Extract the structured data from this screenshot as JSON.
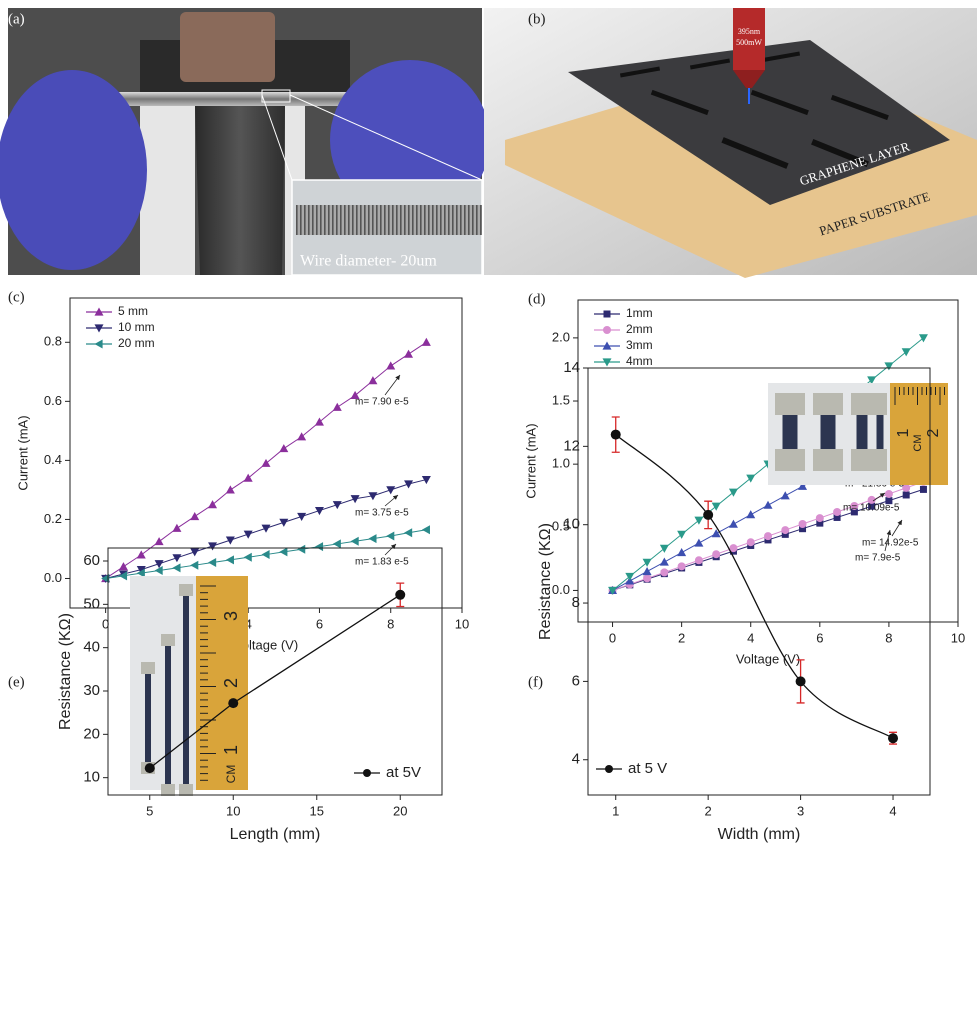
{
  "panels": [
    {
      "label": "(a)",
      "caption": "Wire diameter- 20um"
    },
    {
      "label": "(b)",
      "laser": [
        "395nm",
        "500mW"
      ],
      "layers": [
        "GRAPHENE LAYER",
        "PAPER SUBSTRATE"
      ]
    }
  ],
  "chart_data": [
    {
      "type": "scatter",
      "label": "(c)",
      "x_label": "Voltage (V)",
      "y_label": "Current (mA)",
      "x": [
        0,
        0.5,
        1,
        1.5,
        2,
        2.5,
        3,
        3.5,
        4,
        4.5,
        5,
        5.5,
        6,
        6.5,
        7,
        7.5,
        8,
        8.5,
        9
      ],
      "series": [
        {
          "name": "5 mm",
          "color": "#8b2f9c",
          "marker": "triangle-up",
          "values": [
            0,
            0.04,
            0.08,
            0.125,
            0.17,
            0.21,
            0.25,
            0.3,
            0.34,
            0.39,
            0.44,
            0.48,
            0.53,
            0.58,
            0.62,
            0.67,
            0.72,
            0.76,
            0.8
          ]
        },
        {
          "name": "10 mm",
          "color": "#2d2a70",
          "marker": "triangle-down",
          "values": [
            0,
            0.015,
            0.03,
            0.05,
            0.07,
            0.09,
            0.11,
            0.13,
            0.15,
            0.17,
            0.19,
            0.21,
            0.23,
            0.25,
            0.27,
            0.28,
            0.3,
            0.32,
            0.335
          ]
        },
        {
          "name": "20 mm",
          "color": "#2a8a8a",
          "marker": "triangle-left",
          "values": [
            0,
            0.009,
            0.018,
            0.027,
            0.036,
            0.045,
            0.054,
            0.063,
            0.072,
            0.081,
            0.09,
            0.099,
            0.108,
            0.117,
            0.126,
            0.135,
            0.144,
            0.155,
            0.165
          ]
        }
      ],
      "xlim": [
        -1,
        10
      ],
      "ylim": [
        -0.1,
        0.95
      ],
      "xticks": [
        0,
        2,
        4,
        6,
        8,
        10
      ],
      "yticks": [
        {
          "value": 0,
          "label": "0.0"
        },
        0.2,
        0.4,
        0.6,
        0.8
      ],
      "legend": "upper left",
      "annotations": [
        "m= 7.90 e-5",
        "m= 3.75 e-5",
        "m= 1.83 e-5"
      ]
    },
    {
      "type": "scatter",
      "label": "(d)",
      "x_label": "Voltage (V)",
      "y_label": "Current (mA)",
      "x": [
        0,
        0.5,
        1,
        1.5,
        2,
        2.5,
        3,
        3.5,
        4,
        4.5,
        5,
        5.5,
        6,
        6.5,
        7,
        7.5,
        8,
        8.5,
        9
      ],
      "series": [
        {
          "name": "1mm",
          "color": "#2d2a70",
          "marker": "square",
          "values": [
            0,
            0.044,
            0.089,
            0.133,
            0.178,
            0.222,
            0.267,
            0.311,
            0.356,
            0.4,
            0.444,
            0.489,
            0.533,
            0.578,
            0.622,
            0.667,
            0.711,
            0.756,
            0.8
          ]
        },
        {
          "name": "2mm",
          "color": "#d98fd0",
          "marker": "circle",
          "values": [
            0,
            0.048,
            0.096,
            0.143,
            0.191,
            0.239,
            0.287,
            0.335,
            0.382,
            0.43,
            0.478,
            0.526,
            0.573,
            0.621,
            0.669,
            0.717,
            0.764,
            0.812,
            0.86
          ]
        },
        {
          "name": "3mm",
          "color": "#3d4fb0",
          "marker": "triangle-up",
          "values": [
            0,
            0.075,
            0.15,
            0.225,
            0.3,
            0.375,
            0.45,
            0.525,
            0.6,
            0.675,
            0.75,
            0.825,
            0.9,
            0.975,
            1.05,
            1.125,
            1.2,
            1.275,
            1.35
          ]
        },
        {
          "name": "4mm",
          "color": "#2a9a8a",
          "marker": "triangle-down",
          "values": [
            0,
            0.111,
            0.222,
            0.333,
            0.444,
            0.556,
            0.667,
            0.778,
            0.889,
            1.0,
            1.111,
            1.222,
            1.333,
            1.444,
            1.556,
            1.667,
            1.778,
            1.889,
            2.0
          ]
        }
      ],
      "xlim": [
        -1,
        10
      ],
      "ylim": [
        -0.25,
        2.3
      ],
      "xticks": [
        0,
        2,
        4,
        6,
        8,
        10
      ],
      "yticks": [
        {
          "value": 0,
          "label": "0.0"
        },
        0.5,
        {
          "value": 1,
          "label": "1.0"
        },
        1.5,
        {
          "value": 2,
          "label": "2.0"
        }
      ],
      "legend": "upper left",
      "annotations": [
        "m= 21.86 e-5",
        "m= 14.92e-5",
        "m= 10.09e-5",
        "m= 7.9e-5"
      ]
    },
    {
      "type": "line",
      "label": "(e)",
      "x_label": "Length (mm)",
      "y_label": "Resistance (KΩ)",
      "x": [
        5,
        10,
        20
      ],
      "series": [
        {
          "name": "at 5V",
          "color": "#111111",
          "marker": "circle",
          "values": [
            12.2,
            27.2,
            52.2
          ],
          "errors": [
            0.5,
            0.6,
            2.7
          ],
          "error_color": "#d62728"
        }
      ],
      "smooth": false,
      "xlim": [
        2.5,
        22.5
      ],
      "ylim": [
        6,
        63
      ],
      "xticks": [
        5,
        10,
        15,
        20
      ],
      "yticks": [
        10,
        20,
        30,
        40,
        50,
        60
      ],
      "legend": "lower right",
      "inset_labels": [
        "1",
        "2",
        "3"
      ],
      "inset_unit": "CM"
    },
    {
      "type": "line",
      "label": "(f)",
      "x_label": "Width (mm)",
      "y_label": "Resistance (KΩ)",
      "x": [
        1,
        2,
        3,
        4
      ],
      "series": [
        {
          "name": "at 5 V",
          "color": "#111111",
          "marker": "circle",
          "values": [
            12.3,
            10.25,
            6.0,
            4.55
          ],
          "errors": [
            0.45,
            0.35,
            0.55,
            0.15
          ],
          "error_color": "#d62728"
        }
      ],
      "smooth": true,
      "xlim": [
        0.7,
        4.4
      ],
      "ylim": [
        3.1,
        14
      ],
      "xticks": [
        1,
        2,
        3,
        4
      ],
      "yticks": [
        4,
        6,
        8,
        10,
        12,
        14
      ],
      "legend": "lower left",
      "inset_labels": [
        "1",
        "2"
      ],
      "inset_unit": "CM"
    }
  ]
}
